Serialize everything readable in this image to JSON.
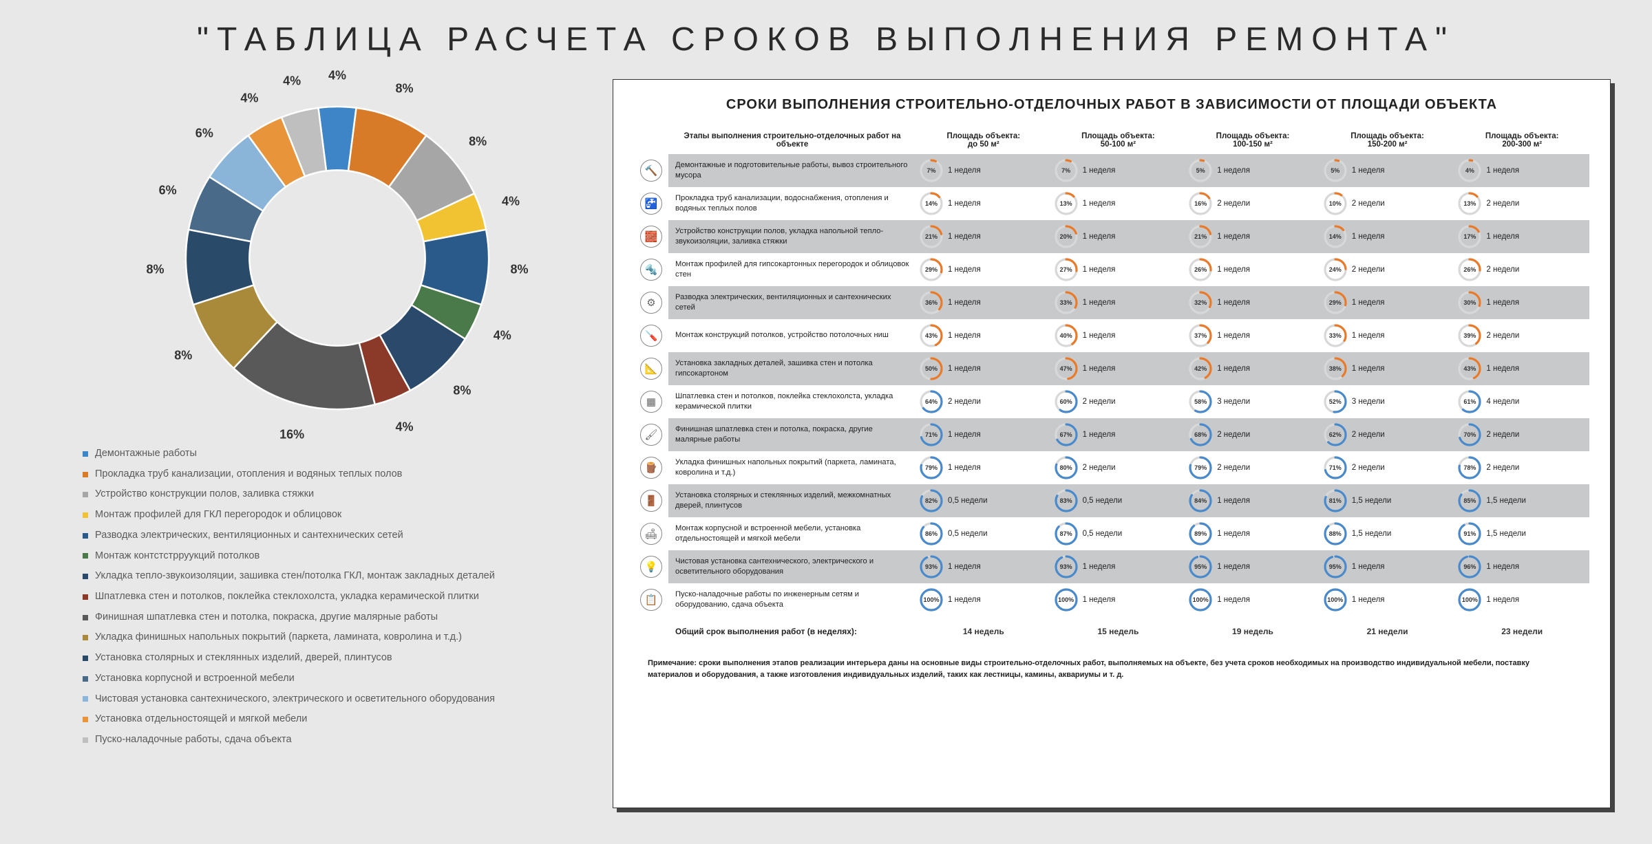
{
  "title": "\"ТАБЛИЦА РАСЧЕТА СРОКОВ ВЫПОЛНЕНИЯ РЕМОНТА\"",
  "donut": {
    "inner_radius": 0.58,
    "background": "#e8e8e8",
    "slices": [
      {
        "label": "Демонтажные работы",
        "value": 4,
        "color": "#3d85c6",
        "label_text": "4%"
      },
      {
        "label": "Прокладка труб канализации, отопления и водяных теплых полов",
        "value": 8,
        "color": "#d87b29",
        "label_text": "8%"
      },
      {
        "label": "Устройство конструкции полов, заливка стяжки",
        "value": 8,
        "color": "#a6a6a6",
        "label_text": "8%"
      },
      {
        "label": "Монтаж профилей для ГКЛ перегородок и облицовок",
        "value": 4,
        "color": "#f1c232",
        "label_text": "4%"
      },
      {
        "label": "Разводка электрических, вентиляционных и сантехнических сетей",
        "value": 8,
        "color": "#2a5a8a",
        "label_text": "8%"
      },
      {
        "label": "Монтаж контстстрруукций потолков",
        "value": 4,
        "color": "#4a7a4a",
        "label_text": "4%"
      },
      {
        "label": "Укладка тепло-звукоизоляции, зашивка стен/потолка ГКЛ, монтаж закладных деталей",
        "value": 8,
        "color": "#2b4a6b",
        "label_text": "8%"
      },
      {
        "label": "Шпатлевка стен и потолков, поклейка стеклохолста, укладка керамической плитки",
        "value": 4,
        "color": "#8b3a2a",
        "label_text": "4%"
      },
      {
        "label": "Финишная шпатлевка стен и потолка, покраска, другие малярные работы",
        "value": 16,
        "color": "#595959",
        "label_text": "16%"
      },
      {
        "label": "Укладка финишных напольных покрытий (паркета, ламината, ковролина и т.д.)",
        "value": 8,
        "color": "#a98a3a",
        "label_text": "8%"
      },
      {
        "label": "Установка столярных и стеклянных изделий, дверей, плинтусов",
        "value": 8,
        "color": "#2a4a6a",
        "label_text": "8%"
      },
      {
        "label": "Установка корпусной и встроенной мебели",
        "value": 6,
        "color": "#4a6a8a",
        "label_text": "6%"
      },
      {
        "label": "Чистовая установка сантехнического, электрического и осветительного оборудования",
        "value": 6,
        "color": "#8ab4d8",
        "label_text": "6%"
      },
      {
        "label": "Установка отдельностоящей и мягкой мебели",
        "value": 4,
        "color": "#e8943a",
        "label_text": "4%"
      },
      {
        "label": "Пуско-наладочные работы, сдача объекта",
        "value": 4,
        "color": "#bfbfbf",
        "label_text": "4%"
      }
    ]
  },
  "table": {
    "title": "СРОКИ ВЫПОЛНЕНИЯ СТРОИТЕЛЬНО-ОТДЕЛОЧНЫХ РАБОТ В ЗАВИСИМОСТИ ОТ ПЛОЩАДИ ОБЪЕКТА",
    "stage_header": "Этапы выполнения строительно-отделочных работ на объекте",
    "area_headers": [
      "Площадь объекта:\nдо 50 м²",
      "Площадь объекта:\n50-100 м²",
      "Площадь объекта:\n100-150 м²",
      "Площадь объекта:\n150-200 м²",
      "Площадь объекта:\n200-300 м²"
    ],
    "ring_colors": {
      "orange": "#e87a2a",
      "blue": "#4a8acb",
      "track": "#d8d8d8"
    },
    "stages": [
      {
        "icon": "🔨",
        "name": "Демонтажные и подготовительные работы, вывоз строительного мусора",
        "cells": [
          {
            "p": 7,
            "d": "1 неделя",
            "c": "orange"
          },
          {
            "p": 7,
            "d": "1 неделя",
            "c": "orange"
          },
          {
            "p": 5,
            "d": "1 неделя",
            "c": "orange"
          },
          {
            "p": 5,
            "d": "1 неделя",
            "c": "orange"
          },
          {
            "p": 4,
            "d": "1 неделя",
            "c": "orange"
          }
        ]
      },
      {
        "icon": "🚰",
        "name": "Прокладка труб канализации, водоснабжения, отопления и водяных теплых полов",
        "cells": [
          {
            "p": 14,
            "d": "1 неделя",
            "c": "orange"
          },
          {
            "p": 13,
            "d": "1 неделя",
            "c": "orange"
          },
          {
            "p": 16,
            "d": "2 недели",
            "c": "orange"
          },
          {
            "p": 10,
            "d": "2 недели",
            "c": "orange"
          },
          {
            "p": 13,
            "d": "2 недели",
            "c": "orange"
          }
        ]
      },
      {
        "icon": "🧱",
        "name": "Устройство конструкции полов, укладка напольной тепло-звукоизоляции, заливка стяжки",
        "cells": [
          {
            "p": 21,
            "d": "1 неделя",
            "c": "orange"
          },
          {
            "p": 20,
            "d": "1 неделя",
            "c": "orange"
          },
          {
            "p": 21,
            "d": "1 неделя",
            "c": "orange"
          },
          {
            "p": 14,
            "d": "1 неделя",
            "c": "orange"
          },
          {
            "p": 17,
            "d": "1 неделя",
            "c": "orange"
          }
        ]
      },
      {
        "icon": "🔩",
        "name": "Монтаж профилей для гипсокартонных перегородок и облицовок стен",
        "cells": [
          {
            "p": 29,
            "d": "1 неделя",
            "c": "orange"
          },
          {
            "p": 27,
            "d": "1 неделя",
            "c": "orange"
          },
          {
            "p": 26,
            "d": "1 неделя",
            "c": "orange"
          },
          {
            "p": 24,
            "d": "2 недели",
            "c": "orange"
          },
          {
            "p": 26,
            "d": "2 недели",
            "c": "orange"
          }
        ]
      },
      {
        "icon": "⚙",
        "name": "Разводка электрических, вентиляционных и сантехнических сетей",
        "cells": [
          {
            "p": 36,
            "d": "1 неделя",
            "c": "orange"
          },
          {
            "p": 33,
            "d": "1 неделя",
            "c": "orange"
          },
          {
            "p": 32,
            "d": "1 неделя",
            "c": "orange"
          },
          {
            "p": 29,
            "d": "1 неделя",
            "c": "orange"
          },
          {
            "p": 30,
            "d": "1 неделя",
            "c": "orange"
          }
        ]
      },
      {
        "icon": "🪛",
        "name": "Монтаж конструкций потолков, устройство потолочных ниш",
        "cells": [
          {
            "p": 43,
            "d": "1 неделя",
            "c": "orange"
          },
          {
            "p": 40,
            "d": "1 неделя",
            "c": "orange"
          },
          {
            "p": 37,
            "d": "1 неделя",
            "c": "orange"
          },
          {
            "p": 33,
            "d": "1 неделя",
            "c": "orange"
          },
          {
            "p": 39,
            "d": "2 недели",
            "c": "orange"
          }
        ]
      },
      {
        "icon": "📐",
        "name": "Установка закладных деталей, зашивка стен и потолка гипсокартоном",
        "cells": [
          {
            "p": 50,
            "d": "1 неделя",
            "c": "orange"
          },
          {
            "p": 47,
            "d": "1 неделя",
            "c": "orange"
          },
          {
            "p": 42,
            "d": "1 неделя",
            "c": "orange"
          },
          {
            "p": 38,
            "d": "1 неделя",
            "c": "orange"
          },
          {
            "p": 43,
            "d": "1 неделя",
            "c": "orange"
          }
        ]
      },
      {
        "icon": "▦",
        "name": "Шпатлевка стен и потолков, поклейка стеклохолста, укладка керамической плитки",
        "cells": [
          {
            "p": 64,
            "d": "2 недели",
            "c": "blue"
          },
          {
            "p": 60,
            "d": "2 недели",
            "c": "blue"
          },
          {
            "p": 58,
            "d": "3 недели",
            "c": "blue"
          },
          {
            "p": 52,
            "d": "3 недели",
            "c": "blue"
          },
          {
            "p": 61,
            "d": "4 недели",
            "c": "blue"
          }
        ]
      },
      {
        "icon": "🖌",
        "name": "Финишная шпатлевка стен и потолка, покраска, другие малярные работы",
        "cells": [
          {
            "p": 71,
            "d": "1 неделя",
            "c": "blue"
          },
          {
            "p": 67,
            "d": "1 неделя",
            "c": "blue"
          },
          {
            "p": 68,
            "d": "2 недели",
            "c": "blue"
          },
          {
            "p": 62,
            "d": "2 недели",
            "c": "blue"
          },
          {
            "p": 70,
            "d": "2 недели",
            "c": "blue"
          }
        ]
      },
      {
        "icon": "🪵",
        "name": "Укладка финишных напольных покрытий (паркета, ламината, ковролина и т.д.)",
        "cells": [
          {
            "p": 79,
            "d": "1 неделя",
            "c": "blue"
          },
          {
            "p": 80,
            "d": "2 недели",
            "c": "blue"
          },
          {
            "p": 79,
            "d": "2 недели",
            "c": "blue"
          },
          {
            "p": 71,
            "d": "2 недели",
            "c": "blue"
          },
          {
            "p": 78,
            "d": "2 недели",
            "c": "blue"
          }
        ]
      },
      {
        "icon": "🚪",
        "name": "Установка столярных и стеклянных изделий, межкомнатных дверей, плинтусов",
        "cells": [
          {
            "p": 82,
            "d": "0,5 недели",
            "c": "blue"
          },
          {
            "p": 83,
            "d": "0,5 недели",
            "c": "blue"
          },
          {
            "p": 84,
            "d": "1 неделя",
            "c": "blue"
          },
          {
            "p": 81,
            "d": "1,5 недели",
            "c": "blue"
          },
          {
            "p": 85,
            "d": "1,5 недели",
            "c": "blue"
          }
        ]
      },
      {
        "icon": "🛋",
        "name": "Монтаж корпусной и встроенной мебели, установка отдельностоящей и мягкой мебели",
        "cells": [
          {
            "p": 86,
            "d": "0,5 недели",
            "c": "blue"
          },
          {
            "p": 87,
            "d": "0,5 недели",
            "c": "blue"
          },
          {
            "p": 89,
            "d": "1 неделя",
            "c": "blue"
          },
          {
            "p": 88,
            "d": "1,5 недели",
            "c": "blue"
          },
          {
            "p": 91,
            "d": "1,5 недели",
            "c": "blue"
          }
        ]
      },
      {
        "icon": "💡",
        "name": "Чистовая установка сантехнического, электрического и осветительного оборудования",
        "cells": [
          {
            "p": 93,
            "d": "1 неделя",
            "c": "blue"
          },
          {
            "p": 93,
            "d": "1 неделя",
            "c": "blue"
          },
          {
            "p": 95,
            "d": "1 неделя",
            "c": "blue"
          },
          {
            "p": 95,
            "d": "1 неделя",
            "c": "blue"
          },
          {
            "p": 96,
            "d": "1 неделя",
            "c": "blue"
          }
        ]
      },
      {
        "icon": "📋",
        "name": "Пуско-наладочные работы по инженерным сетям и оборудованию, сдача объекта",
        "cells": [
          {
            "p": 100,
            "d": "1 неделя",
            "c": "blue"
          },
          {
            "p": 100,
            "d": "1 неделя",
            "c": "blue"
          },
          {
            "p": 100,
            "d": "1 неделя",
            "c": "blue"
          },
          {
            "p": 100,
            "d": "1 неделя",
            "c": "blue"
          },
          {
            "p": 100,
            "d": "1 неделя",
            "c": "blue"
          }
        ]
      }
    ],
    "total_label": "Общий срок выполнения работ (в неделях):",
    "totals": [
      "14 недель",
      "15 недель",
      "19 недель",
      "21 недели",
      "23 недели"
    ],
    "note": "Примечание: сроки выполнения этапов реализации интерьера даны на основные виды строительно-отделочных работ, выполняемых на объекте, без учета сроков необходимых на производство индивидуальной мебели, поставку материалов и оборудования, а также изготовления индивидуальных изделий, таких как лестницы, камины, аквариумы и т. д."
  }
}
